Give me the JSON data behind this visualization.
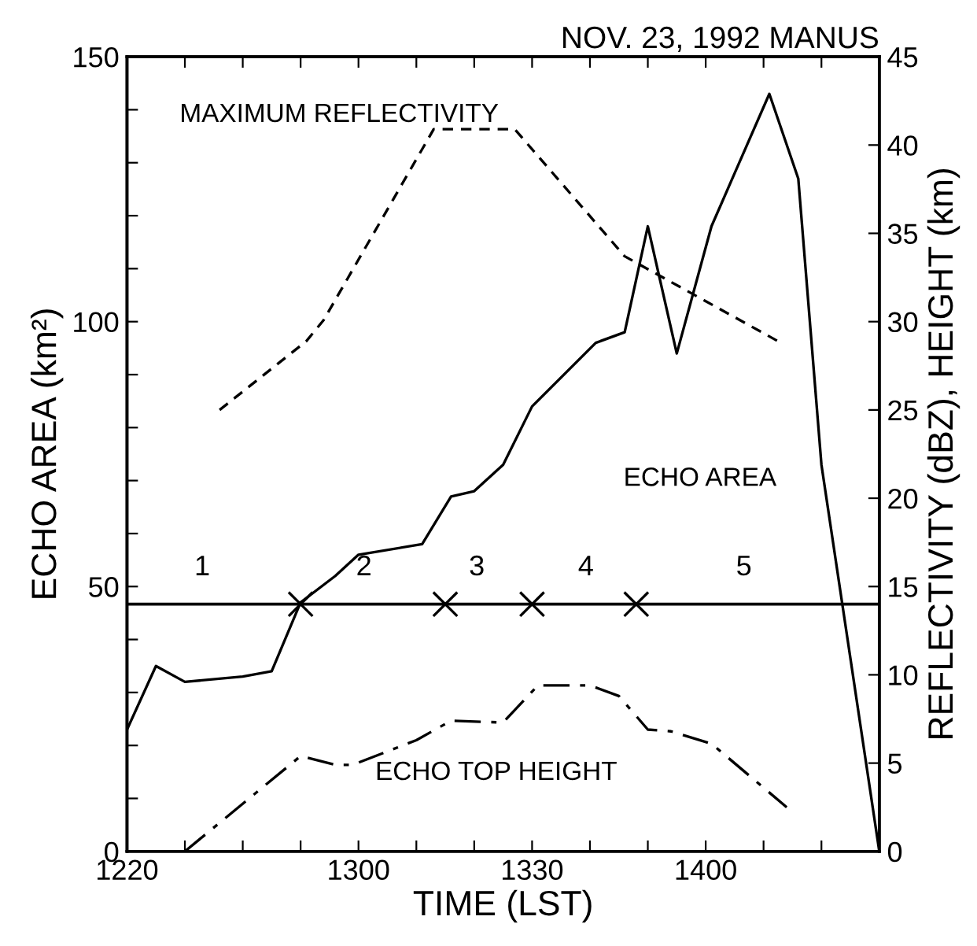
{
  "chart_data": {
    "type": "line",
    "title": "NOV. 23, 1992 MANUS",
    "xlabel": "TIME (LST)",
    "ylabel": "ECHO AREA (km²)",
    "y2label": "REFLECTIVITY (dBZ), HEIGHT (km)",
    "xlim": [
      "1992-11-23T12:20",
      "1992-11-23T14:30"
    ],
    "xticks": [
      {
        "value": "1992-11-23T12:20",
        "label": "1220"
      },
      {
        "value": "1992-11-23T12:30",
        "label": null
      },
      {
        "value": "1992-11-23T12:40",
        "label": null
      },
      {
        "value": "1992-11-23T12:50",
        "label": null
      },
      {
        "value": "1992-11-23T13:00",
        "label": "1300"
      },
      {
        "value": "1992-11-23T13:10",
        "label": null
      },
      {
        "value": "1992-11-23T13:20",
        "label": null
      },
      {
        "value": "1992-11-23T13:30",
        "label": "1330"
      },
      {
        "value": "1992-11-23T13:40",
        "label": null
      },
      {
        "value": "1992-11-23T13:50",
        "label": null
      },
      {
        "value": "1992-11-23T14:00",
        "label": "1400"
      },
      {
        "value": "1992-11-23T14:10",
        "label": null
      },
      {
        "value": "1992-11-23T14:20",
        "label": null
      },
      {
        "value": "1992-11-23T14:30",
        "label": null
      }
    ],
    "ylim": [
      0,
      150
    ],
    "yticks": [
      0,
      {
        "value": 10,
        "label": null
      },
      {
        "value": 20,
        "label": null
      },
      {
        "value": 30,
        "label": null
      },
      {
        "value": 40,
        "label": null
      },
      50,
      {
        "value": 60,
        "label": null
      },
      {
        "value": 70,
        "label": null
      },
      {
        "value": 80,
        "label": null
      },
      {
        "value": 90,
        "label": null
      },
      100,
      {
        "value": 110,
        "label": null
      },
      {
        "value": 120,
        "label": null
      },
      {
        "value": 130,
        "label": null
      },
      {
        "value": 140,
        "label": null
      },
      150
    ],
    "y2lim": [
      0,
      45
    ],
    "y2ticks": [
      0,
      5,
      10,
      15,
      20,
      25,
      30,
      35,
      40,
      45
    ],
    "grid": false,
    "legend": false,
    "series": [
      {
        "name": "ECHO AREA",
        "color": "#000000",
        "line_style": "solid",
        "x": [
          "1992-11-23T12:20",
          "1992-11-23T12:25",
          "1992-11-23T12:30",
          "1992-11-23T12:40",
          "1992-11-23T12:45",
          "1992-11-23T12:50",
          "1992-11-23T12:56",
          "1992-11-23T13:00",
          "1992-11-23T13:11",
          "1992-11-23T13:16",
          "1992-11-23T13:20",
          "1992-11-23T13:25",
          "1992-11-23T13:30",
          "1992-11-23T13:41",
          "1992-11-23T13:46",
          "1992-11-23T13:50",
          "1992-11-23T13:55",
          "1992-11-23T14:01",
          "1992-11-23T14:05",
          "1992-11-23T14:11",
          "1992-11-23T14:16",
          "1992-11-23T14:20",
          "1992-11-23T14:30"
        ],
        "values": [
          23,
          35,
          32,
          33,
          34,
          47,
          52,
          56,
          58,
          67,
          68,
          73,
          84,
          96,
          98,
          118,
          94,
          118,
          128,
          143,
          127,
          73,
          0
        ]
      },
      {
        "name": "MAXIMUM REFLECTIVITY",
        "color": "#000000",
        "axis": "y2",
        "line_style": "dashed",
        "x": [
          "1992-11-23T12:36",
          "1992-11-23T12:51",
          "1992-11-23T12:54",
          "1992-11-23T13:13",
          "1992-11-23T13:27",
          "1992-11-23T13:46",
          "1992-11-23T14:13"
        ],
        "values": [
          25.0,
          28.9,
          30.1,
          40.9,
          40.9,
          33.7,
          28.8
        ]
      },
      {
        "name": "ECHO TOP HEIGHT",
        "color": "#000000",
        "axis": "y2",
        "line_style": "dashdot",
        "x": [
          "1992-11-23T12:30",
          "1992-11-23T12:50",
          "1992-11-23T12:56",
          "1992-11-23T12:59",
          "1992-11-23T13:10",
          "1992-11-23T13:16",
          "1992-11-23T13:25",
          "1992-11-23T13:31",
          "1992-11-23T13:40",
          "1992-11-23T13:45",
          "1992-11-23T13:50",
          "1992-11-23T13:54",
          "1992-11-23T14:01",
          "1992-11-23T14:14"
        ],
        "values": [
          0,
          5.4,
          4.9,
          4.9,
          6.3,
          7.4,
          7.3,
          9.4,
          9.4,
          8.8,
          6.9,
          6.8,
          6.1,
          2.5
        ]
      },
      {
        "type": "scatter",
        "marker": "cross",
        "color": "#000000",
        "axis": "y2",
        "x": [
          "1992-11-23T12:50",
          "1992-11-23T13:15",
          "1992-11-23T13:30",
          "1992-11-23T13:48"
        ],
        "values": [
          14,
          14,
          14,
          14
        ]
      }
    ],
    "ref_lines": [
      {
        "axis": "y2",
        "value": 14,
        "color": "#000000",
        "line_style": "solid"
      }
    ],
    "annotations": [
      "1",
      "2",
      "3",
      "4",
      "5"
    ]
  }
}
